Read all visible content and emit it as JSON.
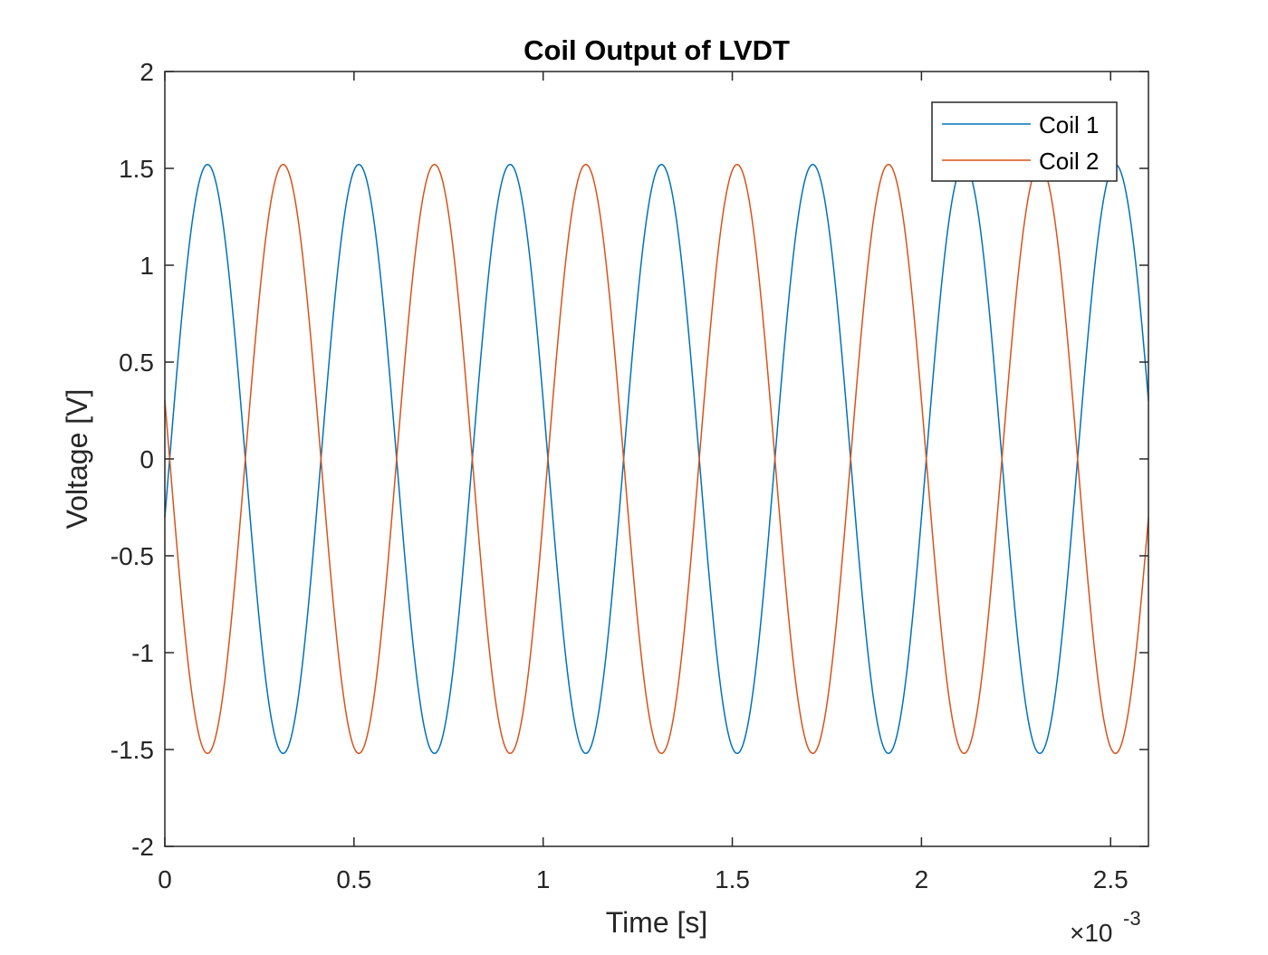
{
  "chart_data": {
    "type": "line",
    "title": "Coil Output of LVDT",
    "xlabel": "Time [s]",
    "ylabel": "Voltage [V]",
    "x_multiplier": {
      "base": "×10",
      "exponent": "-3"
    },
    "xlim": [
      0,
      0.0026
    ],
    "ylim": [
      -2,
      2
    ],
    "xticks": [
      0,
      0.0005,
      0.001,
      0.0015,
      0.002,
      0.0025
    ],
    "xtick_labels": [
      "0",
      "0.5",
      "1",
      "1.5",
      "2",
      "2.5"
    ],
    "yticks": [
      -2,
      -1.5,
      -1,
      -0.5,
      0,
      0.5,
      1,
      1.5,
      2
    ],
    "ytick_labels": [
      "-2",
      "-1.5",
      "-1",
      "-0.5",
      "0",
      "0.5",
      "1",
      "1.5",
      "2"
    ],
    "grid": false,
    "legend_position": "top-right",
    "series": [
      {
        "name": "Coil 1",
        "color": "#0072BD",
        "function": "sine",
        "amplitude": 1.52,
        "frequency_hz": 2500,
        "phase_rad": -0.2,
        "x_start": 0,
        "x_end": 0.0026,
        "samples": 1301
      },
      {
        "name": "Coil 2",
        "color": "#D95319",
        "function": "sine",
        "amplitude": 1.52,
        "frequency_hz": 2500,
        "phase_rad": 2.9416,
        "x_start": 0,
        "x_end": 0.0026,
        "samples": 1301
      }
    ]
  }
}
